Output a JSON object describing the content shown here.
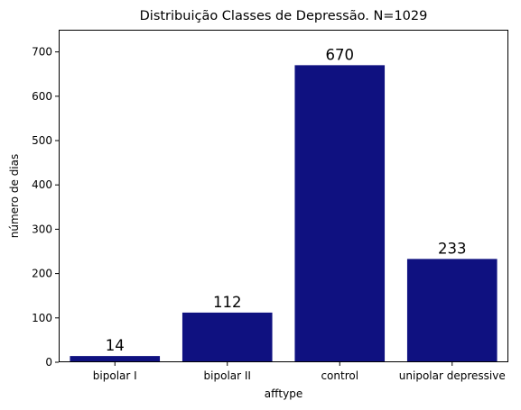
{
  "chart_data": {
    "type": "bar",
    "title": "Distribuição Classes de Depressão. N=1029",
    "xlabel": "afftype",
    "ylabel": "número de dias",
    "categories": [
      "bipolar I",
      "bipolar II",
      "control",
      "unipolar depressive"
    ],
    "values": [
      14,
      112,
      670,
      233
    ],
    "data_labels": [
      "14",
      "112",
      "670",
      "233"
    ],
    "ylim": [
      0,
      750
    ],
    "yticks": [
      0,
      100,
      200,
      300,
      400,
      500,
      600,
      700
    ],
    "grid": false,
    "bar_color": "#0f1180"
  }
}
